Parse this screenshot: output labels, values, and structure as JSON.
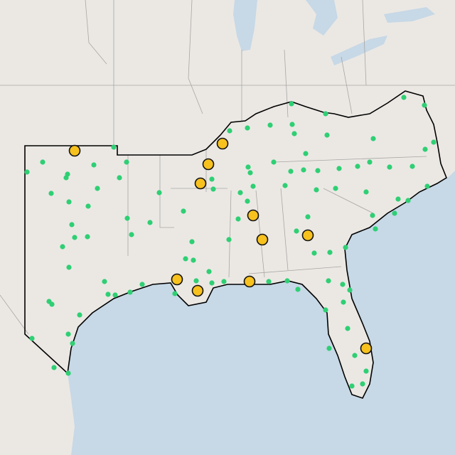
{
  "map": {
    "hubs": [
      [
        -100.75,
        35.52
      ],
      [
        -90.35,
        35.92
      ],
      [
        -91.35,
        34.76
      ],
      [
        -91.9,
        33.68
      ],
      [
        -88.2,
        31.88
      ],
      [
        -87.55,
        30.52
      ],
      [
        -84.35,
        30.76
      ],
      [
        -93.55,
        28.28
      ],
      [
        -92.1,
        27.64
      ],
      [
        -88.45,
        28.16
      ],
      [
        -80.25,
        24.4
      ]
    ],
    "sites": [
      [
        -103,
        34.88
      ],
      [
        -101.25,
        34.2
      ],
      [
        -101.35,
        34
      ],
      [
        -99.4,
        34.72
      ],
      [
        -98,
        35.72
      ],
      [
        -97.1,
        34.88
      ],
      [
        -102.4,
        33.12
      ],
      [
        -101.15,
        32.64
      ],
      [
        -99.15,
        33.4
      ],
      [
        -97.6,
        34
      ],
      [
        -104.1,
        34.32
      ],
      [
        -99.8,
        32.4
      ],
      [
        -100.95,
        31.36
      ],
      [
        -99.85,
        30.68
      ],
      [
        -100.75,
        30.64
      ],
      [
        -101.6,
        30.12
      ],
      [
        -101.15,
        28.96
      ],
      [
        -102.55,
        27.04
      ],
      [
        -102.35,
        26.88
      ],
      [
        -98.65,
        28.16
      ],
      [
        -98.4,
        27.44
      ],
      [
        -97.9,
        27.4
      ],
      [
        -97.05,
        31.72
      ],
      [
        -96.75,
        30.8
      ],
      [
        -95.45,
        31.48
      ],
      [
        -96.85,
        27.56
      ],
      [
        -96,
        28
      ],
      [
        -94.8,
        33.16
      ],
      [
        -93.1,
        32.12
      ],
      [
        -101.2,
        25.2
      ],
      [
        -100.9,
        24.68
      ],
      [
        -103.75,
        24.96
      ],
      [
        -102.2,
        23.32
      ],
      [
        -101.2,
        23
      ],
      [
        -100.4,
        26.28
      ],
      [
        -92.5,
        30.4
      ],
      [
        -92.95,
        29.44
      ],
      [
        -92.4,
        29.36
      ],
      [
        -91.3,
        28.72
      ],
      [
        -93.7,
        27.48
      ],
      [
        -92.2,
        28.2
      ],
      [
        -91.1,
        28.08
      ],
      [
        -90.25,
        28.16
      ],
      [
        -89.9,
        30.52
      ],
      [
        -89.25,
        31.68
      ],
      [
        -89.1,
        33.16
      ],
      [
        -88.4,
        34.28
      ],
      [
        -88.2,
        33.52
      ],
      [
        -88.6,
        32.68
      ],
      [
        -88.55,
        34.6
      ],
      [
        -91.1,
        33.92
      ],
      [
        -91,
        33.36
      ],
      [
        -87,
        36.96
      ],
      [
        -85.45,
        37
      ],
      [
        -85.5,
        38.16
      ],
      [
        -88.6,
        36.8
      ],
      [
        -89.85,
        36.64
      ],
      [
        -83.1,
        37.6
      ],
      [
        -83,
        36.4
      ],
      [
        -84.5,
        35.36
      ],
      [
        -86.75,
        34.88
      ],
      [
        -85.95,
        33.56
      ],
      [
        -85.55,
        34.36
      ],
      [
        -84.65,
        34.44
      ],
      [
        -83.75,
        33.32
      ],
      [
        -83.65,
        34.4
      ],
      [
        -82.15,
        34.52
      ],
      [
        -80.85,
        34.64
      ],
      [
        -80.25,
        33.2
      ],
      [
        -79.8,
        31.88
      ],
      [
        -78.6,
        34.6
      ],
      [
        -77,
        34.64
      ],
      [
        -80,
        34.88
      ],
      [
        -82.4,
        33.4
      ],
      [
        -84.35,
        31.8
      ],
      [
        -85.15,
        31
      ],
      [
        -83.9,
        29.76
      ],
      [
        -85.05,
        27.72
      ],
      [
        -85.8,
        28.2
      ],
      [
        -87.1,
        28.16
      ],
      [
        -82.9,
        28.2
      ],
      [
        -81.9,
        28
      ],
      [
        -81.7,
        30.08
      ],
      [
        -81.4,
        27.68
      ],
      [
        -83.1,
        26.56
      ],
      [
        -81.85,
        27
      ],
      [
        -82.85,
        24.4
      ],
      [
        -81.55,
        25.52
      ],
      [
        -81.05,
        24
      ],
      [
        -80.5,
        22.4
      ],
      [
        -80.25,
        23.12
      ],
      [
        -81.25,
        22.28
      ],
      [
        -77.3,
        32.72
      ],
      [
        -78.25,
        32
      ],
      [
        -79.6,
        31.12
      ],
      [
        -75.95,
        33.52
      ],
      [
        -75.5,
        36
      ],
      [
        -76.15,
        38.08
      ],
      [
        -77.6,
        38.52
      ],
      [
        -79.75,
        36.2
      ],
      [
        -76.1,
        35.6
      ],
      [
        -82.8,
        29.8
      ],
      [
        -85.3,
        36.48
      ],
      [
        -78,
        32.8
      ]
    ]
  }
}
